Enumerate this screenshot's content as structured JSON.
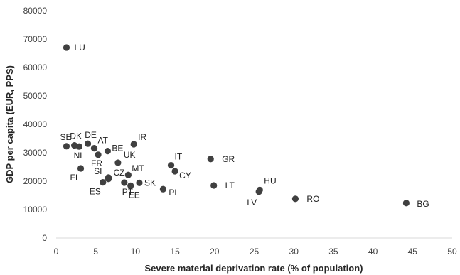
{
  "chart_data": {
    "type": "scatter",
    "title": "",
    "xlabel": "Severe material deprivation rate (% of population)",
    "ylabel": "GDP per capita (EUR, PPS)",
    "xlim": [
      0,
      50
    ],
    "ylim": [
      0,
      80000
    ],
    "x_ticks": [
      "0",
      "5",
      "10",
      "15",
      "20",
      "25",
      "30",
      "35",
      "40",
      "45",
      "50"
    ],
    "y_ticks": [
      "0",
      "10000",
      "20000",
      "30000",
      "40000",
      "50000",
      "60000",
      "70000",
      "80000"
    ],
    "grid": false,
    "legend": "none",
    "marker_color": "#404040",
    "points": [
      {
        "label": "LU",
        "x": 1.3,
        "y": 67000
      },
      {
        "label": "SE",
        "x": 1.3,
        "y": 32300
      },
      {
        "label": "DK",
        "x": 2.3,
        "y": 32600
      },
      {
        "label": "NL",
        "x": 2.9,
        "y": 32200
      },
      {
        "label": "DE",
        "x": 4.0,
        "y": 33200
      },
      {
        "label": "AT",
        "x": 4.8,
        "y": 31600
      },
      {
        "label": "BE",
        "x": 6.5,
        "y": 30600
      },
      {
        "label": "IR",
        "x": 9.8,
        "y": 33000
      },
      {
        "label": "FR",
        "x": 5.3,
        "y": 29300
      },
      {
        "label": "UK",
        "x": 7.8,
        "y": 26500
      },
      {
        "label": "FI",
        "x": 3.1,
        "y": 24500
      },
      {
        "label": "SI",
        "x": 6.6,
        "y": 21300
      },
      {
        "label": "CZ",
        "x": 6.6,
        "y": 20800
      },
      {
        "label": "ES",
        "x": 5.9,
        "y": 19600
      },
      {
        "label": "MT",
        "x": 9.1,
        "y": 22200
      },
      {
        "label": "PT",
        "x": 8.6,
        "y": 19500
      },
      {
        "label": "EE",
        "x": 9.4,
        "y": 18400
      },
      {
        "label": "SK",
        "x": 10.5,
        "y": 19400
      },
      {
        "label": "PL",
        "x": 13.5,
        "y": 17200
      },
      {
        "label": "IT",
        "x": 14.5,
        "y": 25600
      },
      {
        "label": "CY",
        "x": 15.0,
        "y": 23500
      },
      {
        "label": "GR",
        "x": 19.5,
        "y": 27800
      },
      {
        "label": "LT",
        "x": 19.9,
        "y": 18500
      },
      {
        "label": "HU",
        "x": 25.7,
        "y": 16900
      },
      {
        "label": "LV",
        "x": 25.6,
        "y": 16300
      },
      {
        "label": "RO",
        "x": 30.2,
        "y": 13800
      },
      {
        "label": "BG",
        "x": 44.2,
        "y": 12300
      }
    ]
  }
}
